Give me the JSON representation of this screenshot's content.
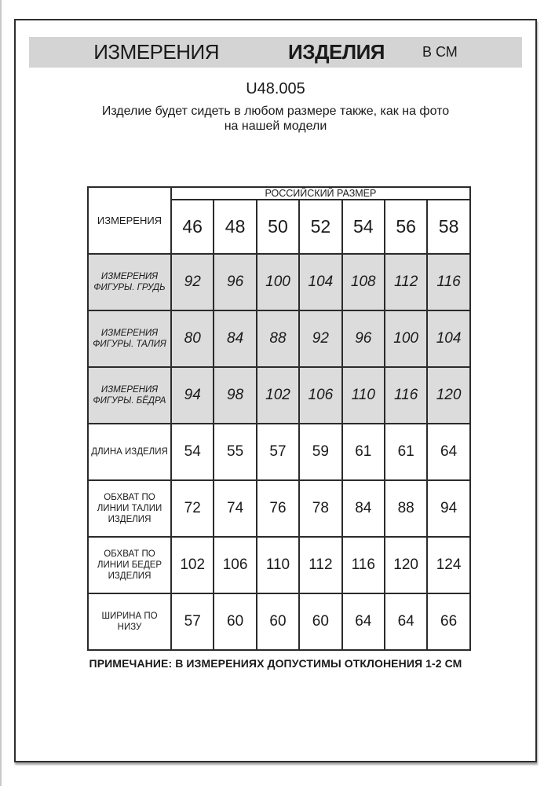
{
  "page": {
    "title_part1": "ИЗМЕРЕНИЯ",
    "title_part2": "ИЗДЕЛИЯ",
    "title_unit": "В СМ",
    "model_code": "U48.005",
    "description": "Изделие будет сидеть в любом размере также, как на фото на нашей модели",
    "note": "ПРИМЕЧАНИЕ: В ИЗМЕРЕНИЯХ ДОПУСТИМЫ ОТКЛОНЕНИЯ 1-2 СМ"
  },
  "table": {
    "corner_label": "ИЗМЕРЕНИЯ",
    "group_header": "РОССИЙСКИЙ РАЗМЕР",
    "sizes": [
      "46",
      "48",
      "50",
      "52",
      "54",
      "56",
      "58"
    ],
    "rows": [
      {
        "label": "ИЗМЕРЕНИЯ ФИГУРЫ. ГРУДЬ",
        "shaded": true,
        "values": [
          "92",
          "96",
          "100",
          "104",
          "108",
          "112",
          "116"
        ]
      },
      {
        "label": "ИЗМЕРЕНИЯ ФИГУРЫ. ТАЛИЯ",
        "shaded": true,
        "values": [
          "80",
          "84",
          "88",
          "92",
          "96",
          "100",
          "104"
        ]
      },
      {
        "label": "ИЗМЕРЕНИЯ ФИГУРЫ. БЁДРА",
        "shaded": true,
        "values": [
          "94",
          "98",
          "102",
          "106",
          "110",
          "116",
          "120"
        ]
      },
      {
        "label": "ДЛИНА ИЗДЕЛИЯ",
        "shaded": false,
        "values": [
          "54",
          "55",
          "57",
          "59",
          "61",
          "61",
          "64"
        ]
      },
      {
        "label": "ОБХВАТ ПО ЛИНИИ ТАЛИИ ИЗДЕЛИЯ",
        "shaded": false,
        "values": [
          "72",
          "74",
          "76",
          "78",
          "84",
          "88",
          "94"
        ]
      },
      {
        "label": "ОБХВАТ ПО ЛИНИИ БЕДЕР ИЗДЕЛИЯ",
        "shaded": false,
        "values": [
          "102",
          "106",
          "110",
          "112",
          "116",
          "120",
          "124"
        ]
      },
      {
        "label": "ШИРИНА ПО НИЗУ",
        "shaded": false,
        "values": [
          "57",
          "60",
          "60",
          "60",
          "64",
          "64",
          "66"
        ]
      }
    ]
  },
  "colors": {
    "title_bar_background": "#d4d4d4",
    "shaded_row_background": "#dcdcdc",
    "border": "#2b2b2b",
    "page_background": "#ffffff"
  }
}
